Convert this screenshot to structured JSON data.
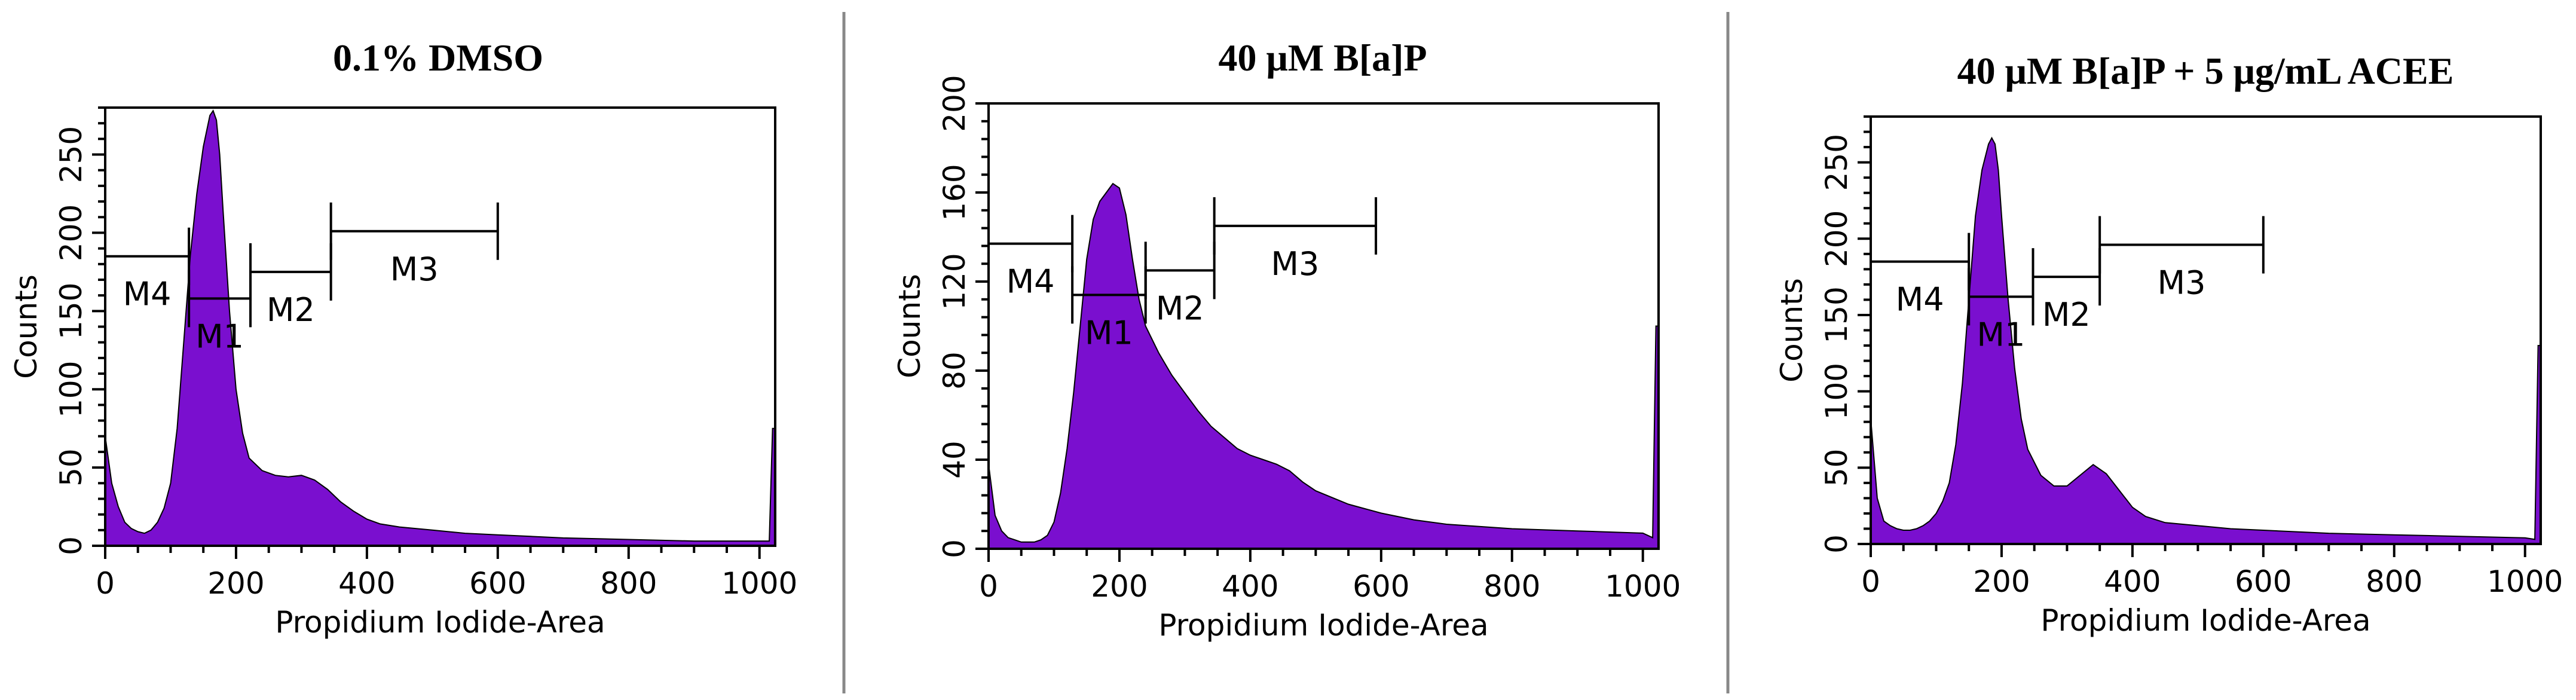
{
  "chart_data": [
    {
      "type": "area",
      "title": "0.1% DMSO",
      "xlabel": "Propidium Iodide-Area",
      "ylabel": "Counts",
      "xlim": [
        0,
        1024
      ],
      "ylim": [
        0,
        280
      ],
      "xticks": [
        0,
        200,
        400,
        600,
        800,
        1000
      ],
      "yticks": [
        0,
        50,
        100,
        150,
        200,
        250
      ],
      "fill_color": "#7a0fcf",
      "x": [
        0,
        10,
        20,
        30,
        40,
        50,
        60,
        70,
        80,
        90,
        100,
        110,
        120,
        130,
        140,
        150,
        160,
        165,
        170,
        175,
        180,
        190,
        200,
        210,
        220,
        240,
        260,
        280,
        300,
        320,
        340,
        360,
        380,
        400,
        420,
        450,
        500,
        550,
        600,
        650,
        700,
        800,
        900,
        1000,
        1015,
        1020,
        1023
      ],
      "y": [
        70,
        40,
        25,
        15,
        11,
        9,
        8,
        10,
        15,
        24,
        40,
        75,
        130,
        185,
        225,
        255,
        275,
        278,
        272,
        250,
        215,
        150,
        100,
        72,
        56,
        48,
        45,
        44,
        45,
        42,
        36,
        28,
        22,
        17,
        14,
        12,
        10,
        8,
        7,
        6,
        5,
        4,
        3,
        3,
        3,
        75,
        75
      ],
      "markers": [
        {
          "name": "M4",
          "range": [
            0,
            128
          ],
          "y": 185
        },
        {
          "name": "M1",
          "range": [
            128,
            222
          ],
          "y": 158
        },
        {
          "name": "M2",
          "range": [
            222,
            345
          ],
          "y": 175
        },
        {
          "name": "M3",
          "range": [
            345,
            600
          ],
          "y": 201
        }
      ]
    },
    {
      "type": "area",
      "title": "40 μM B[a]P",
      "xlabel": "Propidium Iodide-Area",
      "ylabel": "Counts",
      "xlim": [
        0,
        1024
      ],
      "ylim": [
        0,
        200
      ],
      "xticks": [
        0,
        200,
        400,
        600,
        800,
        1000
      ],
      "yticks": [
        0,
        40,
        80,
        120,
        160,
        200
      ],
      "fill_color": "#7a0fcf",
      "x": [
        0,
        10,
        20,
        30,
        40,
        50,
        60,
        70,
        80,
        90,
        100,
        110,
        120,
        130,
        140,
        150,
        160,
        170,
        180,
        190,
        200,
        210,
        220,
        230,
        240,
        260,
        280,
        300,
        320,
        340,
        360,
        380,
        400,
        420,
        440,
        460,
        480,
        500,
        550,
        600,
        650,
        700,
        800,
        900,
        1000,
        1015,
        1020,
        1023
      ],
      "y": [
        38,
        15,
        8,
        5,
        4,
        3,
        3,
        3,
        4,
        6,
        12,
        25,
        45,
        70,
        100,
        130,
        148,
        156,
        160,
        164,
        162,
        150,
        130,
        112,
        100,
        88,
        78,
        70,
        62,
        55,
        50,
        45,
        42,
        40,
        38,
        35,
        30,
        26,
        20,
        16,
        13,
        11,
        9,
        8,
        7,
        5,
        100,
        100
      ],
      "markers": [
        {
          "name": "M4",
          "range": [
            0,
            128
          ],
          "y": 137
        },
        {
          "name": "M1",
          "range": [
            128,
            240
          ],
          "y": 114
        },
        {
          "name": "M2",
          "range": [
            240,
            345
          ],
          "y": 125
        },
        {
          "name": "M3",
          "range": [
            345,
            592
          ],
          "y": 145
        }
      ]
    },
    {
      "type": "area",
      "title": "40 μM B[a]P + 5 μg/mL ACEE",
      "xlabel": "Propidium Iodide-Area",
      "ylabel": "Counts",
      "xlim": [
        0,
        1024
      ],
      "ylim": [
        0,
        280
      ],
      "xticks": [
        0,
        200,
        400,
        600,
        800,
        1000
      ],
      "yticks": [
        0,
        50,
        100,
        150,
        200,
        250
      ],
      "fill_color": "#7a0fcf",
      "x": [
        0,
        10,
        20,
        30,
        40,
        50,
        60,
        70,
        80,
        90,
        100,
        110,
        120,
        130,
        140,
        150,
        160,
        170,
        180,
        185,
        190,
        195,
        200,
        210,
        220,
        230,
        240,
        260,
        280,
        300,
        320,
        340,
        360,
        380,
        400,
        420,
        450,
        500,
        550,
        600,
        700,
        800,
        900,
        1000,
        1015,
        1020,
        1023
      ],
      "y": [
        82,
        30,
        15,
        12,
        10,
        9,
        9,
        10,
        12,
        15,
        20,
        28,
        40,
        65,
        105,
        160,
        215,
        245,
        262,
        266,
        262,
        245,
        215,
        160,
        115,
        82,
        62,
        45,
        38,
        38,
        45,
        52,
        46,
        35,
        24,
        18,
        14,
        12,
        10,
        9,
        7,
        6,
        5,
        4,
        3,
        130,
        130
      ],
      "markers": [
        {
          "name": "M4",
          "range": [
            0,
            150
          ],
          "y": 185
        },
        {
          "name": "M1",
          "range": [
            150,
            248
          ],
          "y": 162
        },
        {
          "name": "M2",
          "range": [
            248,
            350
          ],
          "y": 175
        },
        {
          "name": "M3",
          "range": [
            350,
            600
          ],
          "y": 196
        }
      ]
    }
  ]
}
